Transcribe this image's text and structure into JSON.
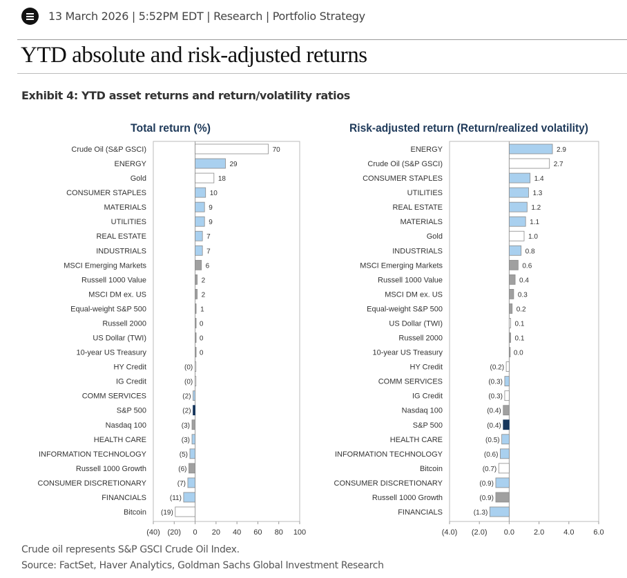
{
  "header": {
    "meta": "13 March 2026 | 5:52PM EDT | Research | Portfolio Strategy",
    "title": "YTD absolute and risk-adjusted returns",
    "exhibit": "Exhibit 4: YTD asset returns and return/volatility ratios"
  },
  "footer": {
    "note": "Crude oil represents S&P GSCI Crude Oil Index.",
    "source": "Source: FactSet, Haver Analytics, Goldman Sachs Global Investment Research"
  },
  "colors": {
    "sector": "#a9d0ef",
    "other": "#ffffff",
    "index": "#a0a0a0",
    "sp500": "#16365c",
    "title": "#1f3a5a"
  },
  "chart_data": [
    {
      "type": "bar",
      "orientation": "horizontal",
      "title": "Total return (%)",
      "xlim": [
        -40,
        100
      ],
      "xticks": [
        -40,
        -20,
        0,
        20,
        40,
        60,
        80,
        100
      ],
      "xtick_labels": [
        "(40)",
        "(20)",
        "0",
        "20",
        "40",
        "60",
        "80",
        "100"
      ],
      "categories": [
        "Crude Oil (S&P GSCI)",
        "ENERGY",
        "Gold",
        "CONSUMER STAPLES",
        "MATERIALS",
        "UTILITIES",
        "REAL ESTATE",
        "INDUSTRIALS",
        "MSCI Emerging Markets",
        "Russell 1000 Value",
        "MSCI DM ex. US",
        "Equal-weight S&P 500",
        "Russell 2000",
        "US Dollar (TWI)",
        "10-year US Treasury",
        "HY Credit",
        "IG Credit",
        "COMM SERVICES",
        "S&P 500",
        "Nasdaq 100",
        "HEALTH CARE",
        "INFORMATION TECHNOLOGY",
        "Russell 1000 Growth",
        "CONSUMER DISCRETIONARY",
        "FINANCIALS",
        "Bitcoin"
      ],
      "values": [
        70,
        29,
        18,
        10,
        9,
        9,
        7,
        7,
        6,
        2,
        2,
        1,
        0.2,
        0.2,
        0.2,
        -0.2,
        -0.2,
        -2,
        -2,
        -3,
        -3,
        -5,
        -6,
        -7,
        -11,
        -19
      ],
      "labels": [
        "70",
        "29",
        "18",
        "10",
        "9",
        "9",
        "7",
        "7",
        "6",
        "2",
        "2",
        "1",
        "0",
        "0",
        "0",
        "(0)",
        "(0)",
        "(2)",
        "(2)",
        "(3)",
        "(3)",
        "(5)",
        "(6)",
        "(7)",
        "(11)",
        "(19)"
      ],
      "kinds": [
        "other",
        "sector",
        "other",
        "sector",
        "sector",
        "sector",
        "sector",
        "sector",
        "index",
        "index",
        "index",
        "index",
        "index",
        "index",
        "index",
        "other",
        "other",
        "sector",
        "sp500",
        "index",
        "sector",
        "sector",
        "index",
        "sector",
        "sector",
        "other"
      ]
    },
    {
      "type": "bar",
      "orientation": "horizontal",
      "title": "Risk-adjusted return (Return/realized volatility)",
      "xlim": [
        -4,
        6
      ],
      "xticks": [
        -4,
        -2,
        0,
        2,
        4,
        6
      ],
      "xtick_labels": [
        "(4.0)",
        "(2.0)",
        "0.0",
        "2.0",
        "4.0",
        "6.0"
      ],
      "categories": [
        "ENERGY",
        "Crude Oil (S&P GSCI)",
        "CONSUMER STAPLES",
        "UTILITIES",
        "REAL ESTATE",
        "MATERIALS",
        "Gold",
        "INDUSTRIALS",
        "MSCI Emerging Markets",
        "Russell 1000 Value",
        "MSCI DM ex. US",
        "Equal-weight S&P 500",
        "US Dollar (TWI)",
        "Russell 2000",
        "10-year US Treasury",
        "HY Credit",
        "COMM SERVICES",
        "IG Credit",
        "Nasdaq 100",
        "S&P 500",
        "HEALTH CARE",
        "INFORMATION TECHNOLOGY",
        "Bitcoin",
        "CONSUMER DISCRETIONARY",
        "Russell 1000 Growth",
        "FINANCIALS"
      ],
      "values": [
        2.9,
        2.7,
        1.4,
        1.3,
        1.2,
        1.1,
        1.0,
        0.8,
        0.6,
        0.4,
        0.3,
        0.2,
        0.1,
        0.1,
        0.02,
        -0.2,
        -0.3,
        -0.3,
        -0.4,
        -0.4,
        -0.5,
        -0.6,
        -0.7,
        -0.9,
        -0.9,
        -1.3
      ],
      "labels": [
        "2.9",
        "2.7",
        "1.4",
        "1.3",
        "1.2",
        "1.1",
        "1.0",
        "0.8",
        "0.6",
        "0.4",
        "0.3",
        "0.2",
        "0.1",
        "0.1",
        "0.0",
        "(0.2)",
        "(0.3)",
        "(0.3)",
        "(0.4)",
        "(0.4)",
        "(0.5)",
        "(0.6)",
        "(0.7)",
        "(0.9)",
        "(0.9)",
        "(1.3)"
      ],
      "kinds": [
        "sector",
        "other",
        "sector",
        "sector",
        "sector",
        "sector",
        "other",
        "sector",
        "index",
        "index",
        "index",
        "index",
        "other",
        "index",
        "index",
        "other",
        "sector",
        "other",
        "index",
        "sp500",
        "sector",
        "sector",
        "other",
        "sector",
        "index",
        "sector"
      ]
    }
  ]
}
